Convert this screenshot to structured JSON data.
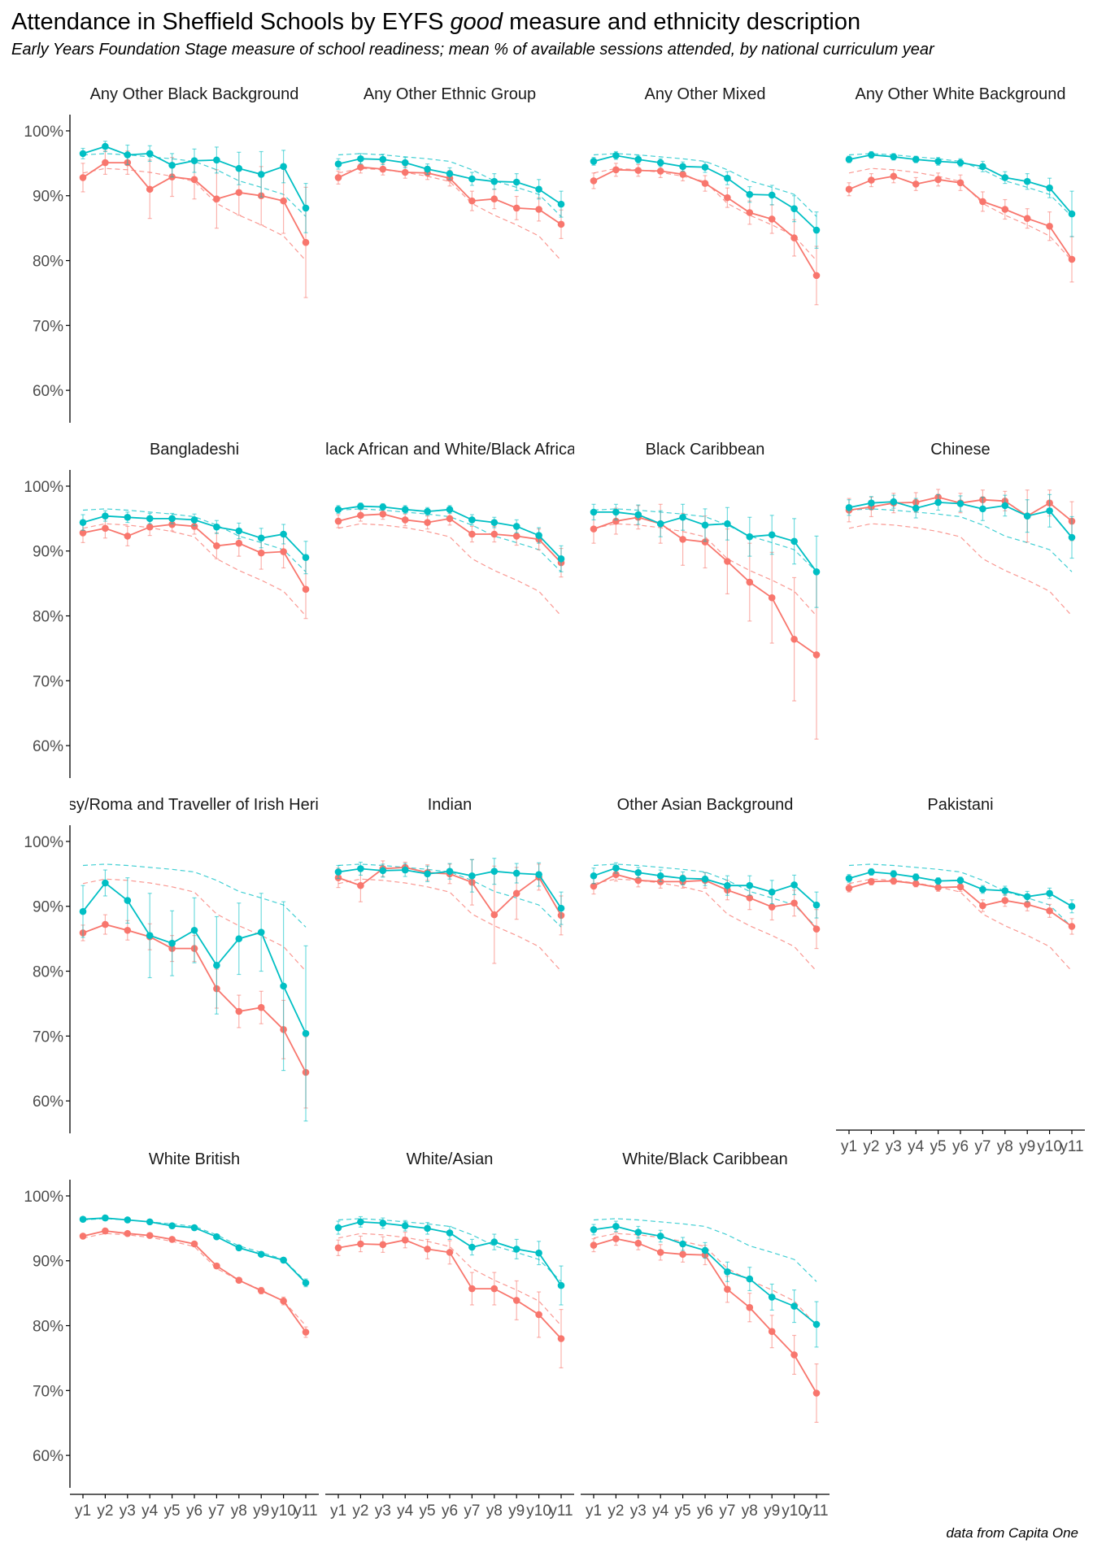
{
  "title": {
    "before": "Attendance in Sheffield Schools by EYFS ",
    "em": "good",
    "after": " measure and ethnicity description"
  },
  "subtitle": "Early Years Foundation Stage measure of school readiness; mean % of available sessions attended, by national curriculum year",
  "caption": "data from Capita One",
  "colors": {
    "good": "#00BFC4",
    "not_good": "#F8766D",
    "axis": "#000000",
    "tick_text": "#4D4D4D"
  },
  "chart_data": {
    "type": "line",
    "layout": "facet_wrap 4 columns",
    "grid": false,
    "legend": "none",
    "x": [
      "y1",
      "y2",
      "y3",
      "y4",
      "y5",
      "y6",
      "y7",
      "y8",
      "y9",
      "y10",
      "y11"
    ],
    "ylim": [
      55,
      102
    ],
    "yticks": [
      60,
      70,
      80,
      90,
      100
    ],
    "ytick_labels": [
      "60%",
      "70%",
      "80%",
      "90%",
      "100%"
    ],
    "reference_dashed": {
      "good": [
        96.3,
        96.5,
        96.3,
        96.0,
        95.7,
        95.3,
        94.0,
        92.3,
        91.3,
        90.2,
        86.8
      ],
      "not_good": [
        93.5,
        94.2,
        94.0,
        93.6,
        93.0,
        92.2,
        88.8,
        87.0,
        85.5,
        83.8,
        80.0
      ]
    },
    "panels": [
      {
        "label": "Any Other Black Background",
        "good": [
          96.5,
          97.6,
          96.3,
          96.5,
          94.7,
          95.4,
          95.5,
          94.2,
          93.3,
          94.5,
          88.1
        ],
        "good_err": [
          0.8,
          0.8,
          1.5,
          1.2,
          1.8,
          1.8,
          2.0,
          2.5,
          3.5,
          2.5,
          3.8
        ],
        "not_good": [
          92.8,
          95.1,
          95.1,
          91.0,
          92.9,
          92.5,
          89.5,
          90.5,
          90.0,
          89.2,
          82.8
        ],
        "not_good_err": [
          2.2,
          1.8,
          1.8,
          4.5,
          3.0,
          3.0,
          4.5,
          3.5,
          4.5,
          5.0,
          8.5
        ]
      },
      {
        "label": "Any Other Ethnic Group",
        "good": [
          94.9,
          95.7,
          95.6,
          95.1,
          94.1,
          93.4,
          92.6,
          92.2,
          92.1,
          91.0,
          88.7
        ],
        "good_err": [
          0.8,
          0.8,
          0.8,
          0.8,
          0.8,
          0.9,
          1.0,
          1.2,
          1.3,
          1.5,
          2.0
        ],
        "not_good": [
          92.8,
          94.4,
          94.1,
          93.6,
          93.5,
          92.7,
          89.2,
          89.5,
          88.1,
          87.9,
          85.6
        ],
        "not_good_err": [
          1.0,
          0.9,
          0.9,
          0.9,
          1.0,
          1.2,
          1.5,
          1.5,
          1.8,
          1.8,
          2.2
        ]
      },
      {
        "label": "Any Other Mixed",
        "good": [
          95.3,
          96.2,
          95.6,
          95.1,
          94.5,
          94.4,
          92.7,
          90.2,
          90.1,
          88.0,
          84.7
        ],
        "good_err": [
          0.6,
          0.6,
          0.6,
          0.6,
          0.7,
          0.8,
          1.0,
          1.2,
          1.5,
          2.0,
          2.8
        ],
        "not_good": [
          92.3,
          94.0,
          93.9,
          93.8,
          93.3,
          91.9,
          89.7,
          87.4,
          86.4,
          83.5,
          77.7
        ],
        "not_good_err": [
          1.2,
          1.0,
          0.9,
          1.0,
          1.0,
          1.2,
          1.5,
          1.8,
          2.2,
          2.8,
          4.5
        ]
      },
      {
        "label": "Any Other White Background",
        "good": [
          95.6,
          96.3,
          96.0,
          95.6,
          95.3,
          95.1,
          94.5,
          92.8,
          92.2,
          91.2,
          87.2
        ],
        "good_err": [
          0.5,
          0.5,
          0.5,
          0.5,
          0.6,
          0.6,
          0.8,
          0.9,
          1.2,
          1.5,
          3.5
        ],
        "not_good": [
          91.0,
          92.4,
          93.0,
          91.8,
          92.5,
          92.0,
          89.1,
          87.9,
          86.5,
          85.3,
          80.2
        ],
        "not_good_err": [
          1.0,
          1.0,
          1.0,
          1.0,
          1.0,
          1.2,
          1.5,
          1.5,
          1.5,
          2.2,
          3.5
        ]
      },
      {
        "label": "Bangladeshi",
        "good": [
          94.4,
          95.4,
          95.2,
          95.0,
          95.0,
          94.8,
          93.7,
          93.1,
          92.0,
          92.6,
          89.0
        ],
        "good_err": [
          1.2,
          0.8,
          0.8,
          0.8,
          0.8,
          0.9,
          1.0,
          1.2,
          1.5,
          1.5,
          2.5
        ],
        "not_good": [
          92.8,
          93.5,
          92.3,
          93.7,
          94.1,
          93.8,
          90.8,
          91.2,
          89.7,
          89.9,
          84.1
        ],
        "not_good_err": [
          1.5,
          1.5,
          1.5,
          1.3,
          1.0,
          1.2,
          2.0,
          2.0,
          2.5,
          2.5,
          4.5
        ]
      },
      {
        "label": "Black African and White/Black African",
        "good": [
          96.4,
          96.9,
          96.8,
          96.4,
          96.1,
          96.4,
          94.8,
          94.4,
          93.8,
          92.4,
          88.8
        ],
        "good_err": [
          0.6,
          0.5,
          0.5,
          0.6,
          0.6,
          0.6,
          0.8,
          0.8,
          1.0,
          1.2,
          2.0
        ],
        "not_good": [
          94.6,
          95.5,
          95.7,
          94.8,
          94.4,
          95.0,
          92.6,
          92.6,
          92.3,
          91.8,
          88.2
        ],
        "not_good_err": [
          1.0,
          0.9,
          0.8,
          0.9,
          1.0,
          1.0,
          1.2,
          1.2,
          1.4,
          1.6,
          2.2
        ]
      },
      {
        "label": "Black Caribbean",
        "good": [
          96.0,
          96.0,
          95.6,
          94.2,
          95.2,
          94.0,
          94.2,
          92.2,
          92.5,
          91.5,
          86.8
        ],
        "good_err": [
          1.2,
          1.2,
          1.5,
          2.0,
          2.0,
          2.5,
          2.5,
          3.0,
          3.0,
          3.5,
          5.5
        ],
        "not_good": [
          93.4,
          94.6,
          95.2,
          94.2,
          91.8,
          91.4,
          88.4,
          85.2,
          82.8,
          76.4,
          74.0
        ],
        "not_good_err": [
          2.2,
          2.0,
          1.8,
          3.0,
          4.0,
          4.0,
          5.0,
          6.0,
          7.0,
          9.5,
          13.0
        ]
      },
      {
        "label": "Chinese",
        "good": [
          96.7,
          97.4,
          97.6,
          96.6,
          97.5,
          97.3,
          96.5,
          97.0,
          95.4,
          96.2,
          92.1
        ],
        "good_err": [
          1.2,
          1.0,
          1.0,
          1.5,
          1.2,
          1.2,
          1.8,
          1.6,
          2.5,
          2.5,
          3.2
        ],
        "not_good": [
          96.3,
          96.8,
          97.4,
          97.5,
          98.3,
          97.4,
          97.9,
          97.7,
          95.4,
          97.4,
          94.6
        ],
        "not_good_err": [
          1.8,
          1.5,
          1.5,
          1.5,
          1.2,
          1.5,
          1.5,
          1.5,
          4.0,
          2.0,
          3.0
        ]
      },
      {
        "label": "Gypsy/Roma and Traveller of Irish Heritage",
        "good": [
          89.2,
          93.6,
          90.9,
          85.5,
          84.3,
          86.3,
          80.9,
          85.0,
          86.0,
          77.7,
          70.4
        ],
        "good_err": [
          4.0,
          2.0,
          3.5,
          6.5,
          5.0,
          5.0,
          7.5,
          5.5,
          6.0,
          13.0,
          13.5
        ],
        "not_good": [
          85.9,
          87.2,
          86.3,
          85.3,
          83.5,
          83.5,
          77.3,
          73.8,
          74.4,
          71.0,
          64.4
        ],
        "not_good_err": [
          1.2,
          1.5,
          1.5,
          2.0,
          2.0,
          2.0,
          3.0,
          2.5,
          2.5,
          4.5,
          5.5
        ]
      },
      {
        "label": "Indian",
        "good": [
          95.3,
          95.8,
          95.5,
          95.6,
          95.0,
          95.4,
          94.7,
          95.4,
          95.1,
          94.9,
          89.7
        ],
        "good_err": [
          1.0,
          1.0,
          1.0,
          1.0,
          1.2,
          1.2,
          2.5,
          2.0,
          1.5,
          1.8,
          2.5
        ],
        "not_good": [
          94.4,
          93.2,
          95.8,
          96.0,
          95.2,
          95.0,
          93.7,
          88.7,
          92.0,
          94.5,
          88.6
        ],
        "not_good_err": [
          1.5,
          2.5,
          1.2,
          0.8,
          1.2,
          1.5,
          3.5,
          7.5,
          4.0,
          2.0,
          3.0
        ]
      },
      {
        "label": "Other Asian Background",
        "good": [
          94.7,
          95.9,
          95.2,
          94.7,
          94.3,
          94.2,
          93.2,
          93.2,
          92.2,
          93.3,
          90.2
        ],
        "good_err": [
          1.2,
          0.8,
          0.8,
          0.9,
          1.0,
          1.0,
          1.5,
          1.5,
          1.8,
          1.5,
          2.0
        ],
        "not_good": [
          93.1,
          94.9,
          94.0,
          93.8,
          93.8,
          94.0,
          92.5,
          91.3,
          89.9,
          90.5,
          86.5
        ],
        "not_good_err": [
          1.2,
          1.0,
          1.0,
          1.0,
          1.0,
          1.2,
          1.5,
          1.8,
          2.0,
          2.0,
          3.0
        ]
      },
      {
        "label": "Pakistani",
        "good": [
          94.3,
          95.3,
          95.0,
          94.5,
          93.9,
          94.0,
          92.6,
          92.4,
          91.5,
          92.0,
          90.0
        ],
        "good_err": [
          0.6,
          0.5,
          0.5,
          0.5,
          0.5,
          0.5,
          0.6,
          0.7,
          0.8,
          0.8,
          1.0
        ],
        "not_good": [
          92.8,
          93.8,
          93.9,
          93.5,
          92.9,
          93.0,
          90.1,
          90.9,
          90.3,
          89.3,
          86.9
        ],
        "not_good_err": [
          0.6,
          0.5,
          0.5,
          0.5,
          0.6,
          0.7,
          0.9,
          0.9,
          1.0,
          1.0,
          1.2
        ]
      },
      {
        "label": "White British",
        "good": [
          96.4,
          96.6,
          96.3,
          96.0,
          95.4,
          95.1,
          93.7,
          92.0,
          91.0,
          90.1,
          86.6
        ],
        "good_err": [
          0.2,
          0.2,
          0.2,
          0.2,
          0.2,
          0.2,
          0.3,
          0.3,
          0.3,
          0.4,
          0.6
        ],
        "not_good": [
          93.8,
          94.6,
          94.2,
          93.9,
          93.3,
          92.6,
          89.2,
          87.0,
          85.4,
          83.8,
          79.0
        ],
        "not_good_err": [
          0.3,
          0.3,
          0.3,
          0.3,
          0.3,
          0.3,
          0.4,
          0.4,
          0.5,
          0.6,
          0.8
        ]
      },
      {
        "label": "White/Asian",
        "good": [
          95.1,
          96.0,
          95.8,
          95.4,
          95.0,
          94.3,
          92.1,
          92.9,
          91.8,
          91.2,
          86.2
        ],
        "good_err": [
          1.0,
          0.8,
          0.8,
          0.8,
          0.9,
          1.0,
          1.2,
          1.2,
          1.5,
          1.8,
          3.0
        ],
        "not_good": [
          92.0,
          92.6,
          92.5,
          93.2,
          91.8,
          91.3,
          85.7,
          85.7,
          83.9,
          81.7,
          78.0
        ],
        "not_good_err": [
          1.2,
          1.2,
          1.2,
          1.2,
          1.5,
          1.8,
          2.5,
          2.5,
          3.0,
          3.5,
          4.5
        ]
      },
      {
        "label": "White/Black Caribbean",
        "good": [
          94.8,
          95.3,
          94.4,
          93.8,
          92.6,
          91.6,
          88.3,
          87.2,
          84.4,
          83.0,
          80.2
        ],
        "good_err": [
          0.8,
          0.8,
          0.9,
          0.9,
          1.0,
          1.2,
          1.5,
          1.8,
          2.0,
          2.5,
          3.5
        ],
        "not_good": [
          92.4,
          93.4,
          92.7,
          91.3,
          91.0,
          90.9,
          85.6,
          82.8,
          79.1,
          75.5,
          69.6
        ],
        "not_good_err": [
          1.0,
          1.0,
          1.0,
          1.2,
          1.2,
          1.5,
          2.0,
          2.2,
          2.5,
          3.0,
          4.5
        ]
      }
    ]
  }
}
